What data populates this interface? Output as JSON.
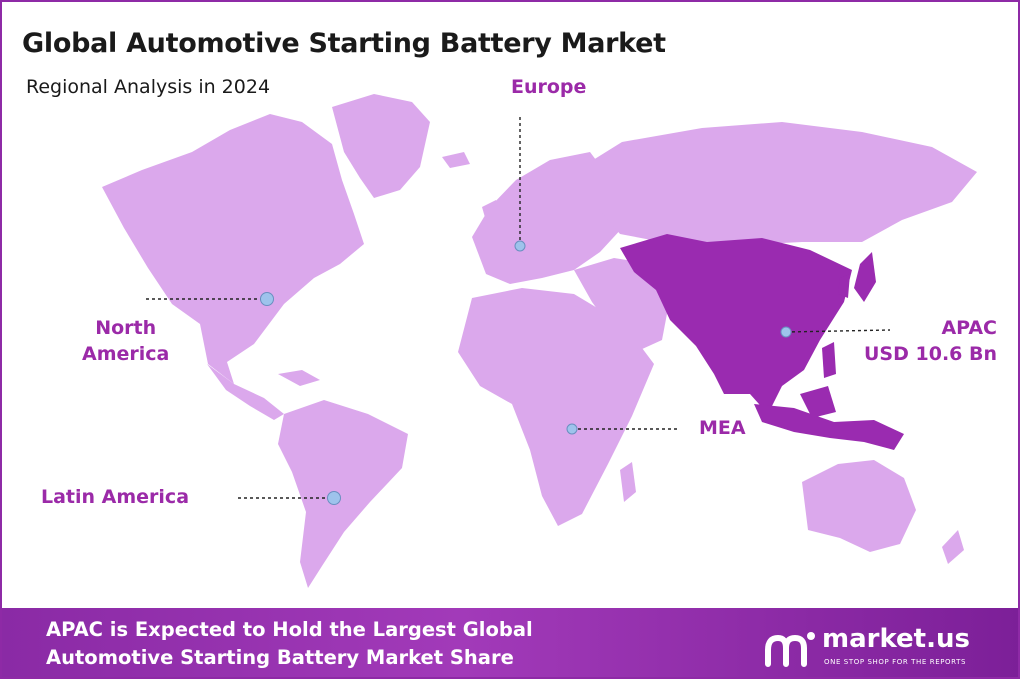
{
  "header": {
    "title": "Global Automotive Starting Battery Market",
    "subtitle": "Regional Analysis in 2024"
  },
  "regions": [
    {
      "id": "europe",
      "lines": [
        "Europe"
      ],
      "highlighted": false
    },
    {
      "id": "north-america",
      "lines": [
        "North",
        "America"
      ],
      "highlighted": false
    },
    {
      "id": "apac",
      "lines": [
        "APAC",
        "USD 10.6 Bn"
      ],
      "highlighted": true
    },
    {
      "id": "mea",
      "lines": [
        "MEA"
      ],
      "highlighted": false
    },
    {
      "id": "latin-america",
      "lines": [
        "Latin America"
      ],
      "highlighted": false
    }
  ],
  "footer": {
    "lines": [
      "APAC is Expected to Hold the Largest Global",
      "Automotive Starting Battery Market Share"
    ]
  },
  "brand": {
    "name": "market.us",
    "tagline": "ONE STOP SHOP FOR THE REPORTS"
  },
  "colors": {
    "land": "#dba8ec",
    "highlight": "#9a2bb0",
    "label": "#9b2aa8",
    "marker": "#9ec3ec",
    "footer": "#8a2aa5"
  }
}
